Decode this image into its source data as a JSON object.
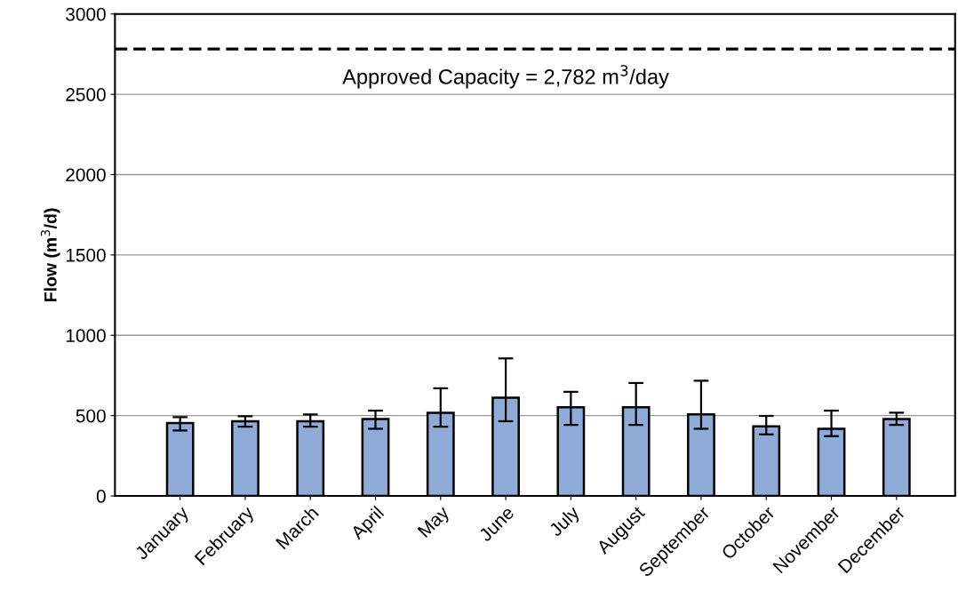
{
  "chart_data": {
    "type": "bar",
    "ylabel": "Flow (m$^{3}$/d)",
    "categories": [
      "January",
      "February",
      "March",
      "April",
      "May",
      "June",
      "July",
      "August",
      "September",
      "October",
      "November",
      "December"
    ],
    "values": [
      453,
      465,
      465,
      478,
      517,
      611,
      552,
      552,
      507,
      433,
      418,
      478
    ],
    "errors": [
      [
        407,
        490
      ],
      [
        431,
        496
      ],
      [
        431,
        507
      ],
      [
        418,
        531
      ],
      [
        431,
        670
      ],
      [
        465,
        856
      ],
      [
        442,
        648
      ],
      [
        442,
        703
      ],
      [
        418,
        717
      ],
      [
        383,
        498
      ],
      [
        372,
        531
      ],
      [
        442,
        518
      ]
    ],
    "color": "#8fabd8",
    "ylim": [
      0,
      3000
    ],
    "yticks": [
      0,
      500,
      1000,
      1500,
      2000,
      2500,
      3000
    ],
    "grid": "y",
    "ref_lines": [
      {
        "axis": "y",
        "value": 2782,
        "label": "Approved Capacity = 2,782 m$^{3}$/day",
        "color": "#000000",
        "line_style": "dashed"
      }
    ]
  }
}
